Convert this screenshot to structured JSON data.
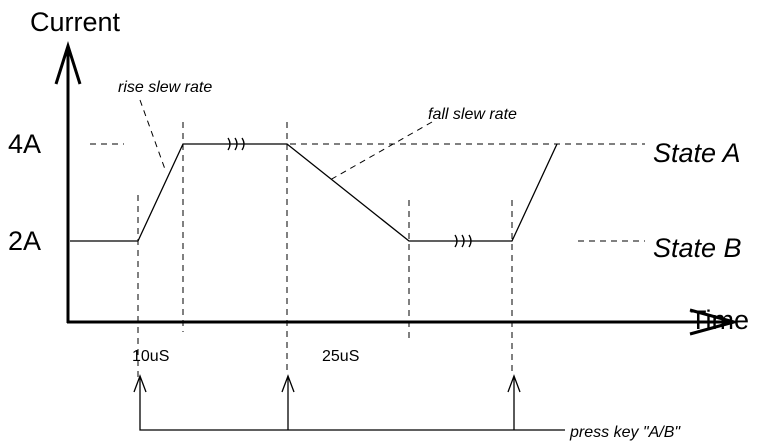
{
  "y_axis_label": "Current",
  "x_axis_label": "Time",
  "levels": [
    "4A",
    "2A"
  ],
  "states": [
    "State A",
    "State B"
  ],
  "annotations": {
    "rise": "rise slew rate",
    "fall": "fall slew rate",
    "press": "press key \"A/B\""
  },
  "durations": [
    "10uS",
    "25uS"
  ]
}
